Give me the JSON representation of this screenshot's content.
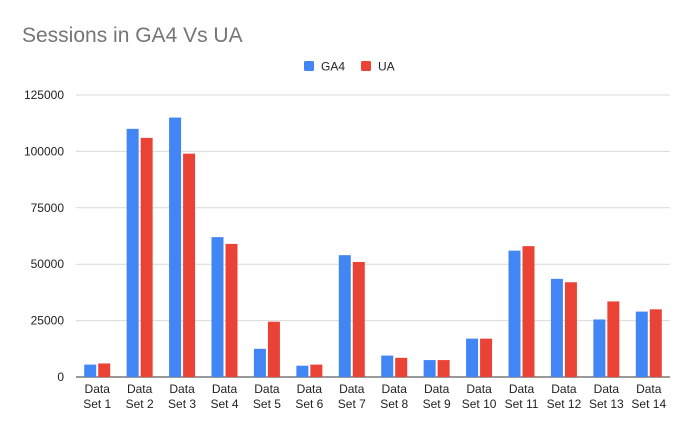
{
  "chart_data": {
    "type": "bar",
    "title": "Sessions in GA4 Vs UA",
    "xlabel": "",
    "ylabel": "",
    "ylim": [
      0,
      125000
    ],
    "yticks": [
      "0",
      "25000",
      "50000",
      "75000",
      "100000",
      "125000"
    ],
    "yticks_values": [
      0,
      25000,
      50000,
      75000,
      100000,
      125000
    ],
    "grid": true,
    "legend_position": "top-center",
    "categories": [
      "Data Set 1",
      "Data Set 2",
      "Data Set 3",
      "Data Set 4",
      "Data Set 5",
      "Data Set 6",
      "Data Set 7",
      "Data Set 8",
      "Data Set 9",
      "Data Set 10",
      "Data Set 11",
      "Data Set 12",
      "Data Set 13",
      "Data Set 14"
    ],
    "series": [
      {
        "name": "GA4",
        "color": "#4285f4",
        "values": [
          5500,
          110000,
          115000,
          62000,
          12500,
          5000,
          54000,
          9500,
          7500,
          17000,
          56000,
          43500,
          25500,
          29000
        ]
      },
      {
        "name": "UA",
        "color": "#ea4335",
        "values": [
          6000,
          106000,
          99000,
          59000,
          24500,
          5500,
          51000,
          8500,
          7500,
          17000,
          58000,
          42000,
          33500,
          30000
        ]
      }
    ]
  }
}
